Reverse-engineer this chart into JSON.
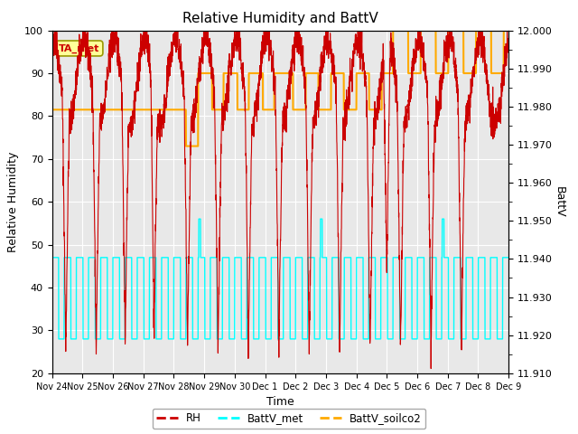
{
  "title": "Relative Humidity and BattV",
  "xlabel": "Time",
  "ylabel_left": "Relative Humidity",
  "ylabel_right": "BattV",
  "ylim_left": [
    20,
    100
  ],
  "ylim_right": [
    11.91,
    12.0
  ],
  "fig_bg_color": "#ffffff",
  "plot_bg_color": "#e8e8e8",
  "annotation_text": "TA_met",
  "annotation_bg": "#ffff99",
  "annotation_border": "#999900",
  "rh_color": "#cc0000",
  "battv_met_color": "#00ffff",
  "battv_soilco2_color": "#ffaa00",
  "xtick_labels": [
    "Nov 24",
    "Nov 25",
    "Nov 26",
    "Nov 27",
    "Nov 28",
    "Nov 29",
    "Nov 30",
    "Dec 1",
    "Dec 2",
    "Dec 3",
    "Dec 4",
    "Dec 5",
    "Dec 6",
    "Dec 7",
    "Dec 8",
    "Dec 9"
  ],
  "xtick_positions": [
    0,
    1,
    2,
    3,
    4,
    5,
    6,
    7,
    8,
    9,
    10,
    11,
    12,
    13,
    14,
    15
  ],
  "right_ticks": [
    11.91,
    11.92,
    11.93,
    11.94,
    11.95,
    11.96,
    11.97,
    11.98,
    11.99,
    12.0
  ]
}
